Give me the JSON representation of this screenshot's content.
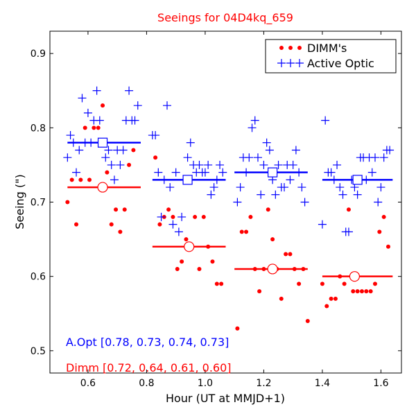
{
  "chart_data": {
    "type": "scatter",
    "title": "Seeings for 04D4kq_659",
    "xlabel": "Hour (UT at MMJD+1)",
    "ylabel": "Seeing (\")",
    "xlim": [
      0.47,
      1.67
    ],
    "ylim": [
      0.47,
      0.93
    ],
    "xticks": [
      0.6,
      0.8,
      1.0,
      1.2,
      1.4,
      1.6
    ],
    "xtick_labels": [
      "0.6",
      "0.8",
      "1.0",
      "1.2",
      "1.4",
      "1.6"
    ],
    "yticks": [
      0.5,
      0.6,
      0.7,
      0.8,
      0.9
    ],
    "ytick_labels": [
      "0.5",
      "0.6",
      "0.7",
      "0.8",
      "0.9"
    ],
    "legend_position": "top-right",
    "colors": {
      "dimm": "#ff0000",
      "aopt": "#0000ff"
    },
    "series": [
      {
        "name": "DIMM's",
        "key": "dimm",
        "color": "#ff0000",
        "marker": "dot",
        "points": [
          [
            0.53,
            0.7
          ],
          [
            0.545,
            0.73
          ],
          [
            0.56,
            0.67
          ],
          [
            0.575,
            0.73
          ],
          [
            0.59,
            0.8
          ],
          [
            0.605,
            0.73
          ],
          [
            0.62,
            0.8
          ],
          [
            0.635,
            0.8
          ],
          [
            0.65,
            0.83
          ],
          [
            0.665,
            0.74
          ],
          [
            0.68,
            0.67
          ],
          [
            0.695,
            0.69
          ],
          [
            0.71,
            0.66
          ],
          [
            0.725,
            0.69
          ],
          [
            0.74,
            0.75
          ],
          [
            0.755,
            0.77
          ],
          [
            0.83,
            0.76
          ],
          [
            0.845,
            0.67
          ],
          [
            0.86,
            0.68
          ],
          [
            0.875,
            0.69
          ],
          [
            0.89,
            0.68
          ],
          [
            0.905,
            0.61
          ],
          [
            0.92,
            0.62
          ],
          [
            0.935,
            0.65
          ],
          [
            0.95,
            0.64
          ],
          [
            0.965,
            0.68
          ],
          [
            0.98,
            0.61
          ],
          [
            0.995,
            0.68
          ],
          [
            1.01,
            0.64
          ],
          [
            1.025,
            0.62
          ],
          [
            1.04,
            0.59
          ],
          [
            1.055,
            0.59
          ],
          [
            1.11,
            0.53
          ],
          [
            1.125,
            0.66
          ],
          [
            1.14,
            0.66
          ],
          [
            1.155,
            0.68
          ],
          [
            1.17,
            0.61
          ],
          [
            1.185,
            0.58
          ],
          [
            1.2,
            0.61
          ],
          [
            1.215,
            0.69
          ],
          [
            1.23,
            0.65
          ],
          [
            1.245,
            0.61
          ],
          [
            1.26,
            0.57
          ],
          [
            1.275,
            0.63
          ],
          [
            1.29,
            0.63
          ],
          [
            1.305,
            0.61
          ],
          [
            1.32,
            0.59
          ],
          [
            1.335,
            0.61
          ],
          [
            1.35,
            0.54
          ],
          [
            1.4,
            0.59
          ],
          [
            1.415,
            0.56
          ],
          [
            1.43,
            0.57
          ],
          [
            1.445,
            0.57
          ],
          [
            1.46,
            0.6
          ],
          [
            1.475,
            0.59
          ],
          [
            1.49,
            0.69
          ],
          [
            1.505,
            0.58
          ],
          [
            1.52,
            0.58
          ],
          [
            1.535,
            0.58
          ],
          [
            1.55,
            0.58
          ],
          [
            1.565,
            0.58
          ],
          [
            1.58,
            0.59
          ],
          [
            1.595,
            0.66
          ],
          [
            1.61,
            0.68
          ],
          [
            1.625,
            0.64
          ]
        ]
      },
      {
        "name": "Active Optic",
        "key": "aopt",
        "color": "#0000ff",
        "marker": "plus",
        "points": [
          [
            0.53,
            0.76
          ],
          [
            0.54,
            0.79
          ],
          [
            0.55,
            0.78
          ],
          [
            0.56,
            0.74
          ],
          [
            0.57,
            0.77
          ],
          [
            0.58,
            0.84
          ],
          [
            0.59,
            0.78
          ],
          [
            0.6,
            0.82
          ],
          [
            0.61,
            0.78
          ],
          [
            0.62,
            0.81
          ],
          [
            0.63,
            0.85
          ],
          [
            0.64,
            0.81
          ],
          [
            0.65,
            0.78
          ],
          [
            0.66,
            0.76
          ],
          [
            0.67,
            0.77
          ],
          [
            0.68,
            0.75
          ],
          [
            0.69,
            0.73
          ],
          [
            0.7,
            0.77
          ],
          [
            0.71,
            0.75
          ],
          [
            0.72,
            0.77
          ],
          [
            0.73,
            0.81
          ],
          [
            0.74,
            0.85
          ],
          [
            0.75,
            0.81
          ],
          [
            0.76,
            0.81
          ],
          [
            0.77,
            0.83
          ],
          [
            0.82,
            0.79
          ],
          [
            0.83,
            0.79
          ],
          [
            0.84,
            0.74
          ],
          [
            0.85,
            0.68
          ],
          [
            0.86,
            0.73
          ],
          [
            0.87,
            0.83
          ],
          [
            0.88,
            0.72
          ],
          [
            0.89,
            0.67
          ],
          [
            0.9,
            0.74
          ],
          [
            0.91,
            0.66
          ],
          [
            0.92,
            0.68
          ],
          [
            0.93,
            0.73
          ],
          [
            0.94,
            0.76
          ],
          [
            0.95,
            0.78
          ],
          [
            0.96,
            0.75
          ],
          [
            0.97,
            0.74
          ],
          [
            0.98,
            0.75
          ],
          [
            0.99,
            0.74
          ],
          [
            1.0,
            0.74
          ],
          [
            1.01,
            0.75
          ],
          [
            1.02,
            0.71
          ],
          [
            1.03,
            0.72
          ],
          [
            1.04,
            0.73
          ],
          [
            1.05,
            0.75
          ],
          [
            1.06,
            0.74
          ],
          [
            1.11,
            0.7
          ],
          [
            1.12,
            0.72
          ],
          [
            1.13,
            0.76
          ],
          [
            1.14,
            0.74
          ],
          [
            1.15,
            0.76
          ],
          [
            1.16,
            0.8
          ],
          [
            1.17,
            0.81
          ],
          [
            1.18,
            0.76
          ],
          [
            1.19,
            0.71
          ],
          [
            1.2,
            0.75
          ],
          [
            1.21,
            0.78
          ],
          [
            1.22,
            0.77
          ],
          [
            1.23,
            0.73
          ],
          [
            1.24,
            0.71
          ],
          [
            1.25,
            0.75
          ],
          [
            1.26,
            0.72
          ],
          [
            1.27,
            0.72
          ],
          [
            1.28,
            0.75
          ],
          [
            1.29,
            0.73
          ],
          [
            1.3,
            0.75
          ],
          [
            1.31,
            0.77
          ],
          [
            1.32,
            0.74
          ],
          [
            1.33,
            0.72
          ],
          [
            1.34,
            0.7
          ],
          [
            1.4,
            0.67
          ],
          [
            1.41,
            0.81
          ],
          [
            1.42,
            0.74
          ],
          [
            1.43,
            0.74
          ],
          [
            1.44,
            0.73
          ],
          [
            1.45,
            0.75
          ],
          [
            1.46,
            0.72
          ],
          [
            1.47,
            0.71
          ],
          [
            1.48,
            0.66
          ],
          [
            1.49,
            0.66
          ],
          [
            1.5,
            0.73
          ],
          [
            1.51,
            0.72
          ],
          [
            1.52,
            0.71
          ],
          [
            1.53,
            0.76
          ],
          [
            1.54,
            0.76
          ],
          [
            1.55,
            0.73
          ],
          [
            1.56,
            0.76
          ],
          [
            1.57,
            0.74
          ],
          [
            1.58,
            0.76
          ],
          [
            1.59,
            0.7
          ],
          [
            1.6,
            0.72
          ],
          [
            1.61,
            0.76
          ],
          [
            1.62,
            0.77
          ],
          [
            1.63,
            0.77
          ]
        ]
      }
    ],
    "bin_averages": [
      {
        "key": "dimm",
        "color": "#ff0000",
        "marker": "circle",
        "bins": [
          {
            "x0": 0.53,
            "x1": 0.78,
            "center": 0.65,
            "value": 0.72
          },
          {
            "x0": 0.82,
            "x1": 1.07,
            "center": 0.945,
            "value": 0.64
          },
          {
            "x0": 1.1,
            "x1": 1.35,
            "center": 1.23,
            "value": 0.61
          },
          {
            "x0": 1.4,
            "x1": 1.64,
            "center": 1.51,
            "value": 0.6
          }
        ]
      },
      {
        "key": "aopt",
        "color": "#0000ff",
        "marker": "square",
        "bins": [
          {
            "x0": 0.53,
            "x1": 0.78,
            "center": 0.65,
            "value": 0.78
          },
          {
            "x0": 0.82,
            "x1": 1.07,
            "center": 0.94,
            "value": 0.73
          },
          {
            "x0": 1.1,
            "x1": 1.35,
            "center": 1.23,
            "value": 0.74
          },
          {
            "x0": 1.4,
            "x1": 1.64,
            "center": 1.52,
            "value": 0.73
          }
        ]
      }
    ],
    "annotations": [
      {
        "key": "aopt",
        "text": "A.Opt [0.78, 0.73, 0.74, 0.73]",
        "color": "#0000ff"
      },
      {
        "key": "dimm",
        "text": "Dimm [0.72, 0.64, 0.61, 0.60]",
        "color": "#ff0000"
      }
    ]
  }
}
